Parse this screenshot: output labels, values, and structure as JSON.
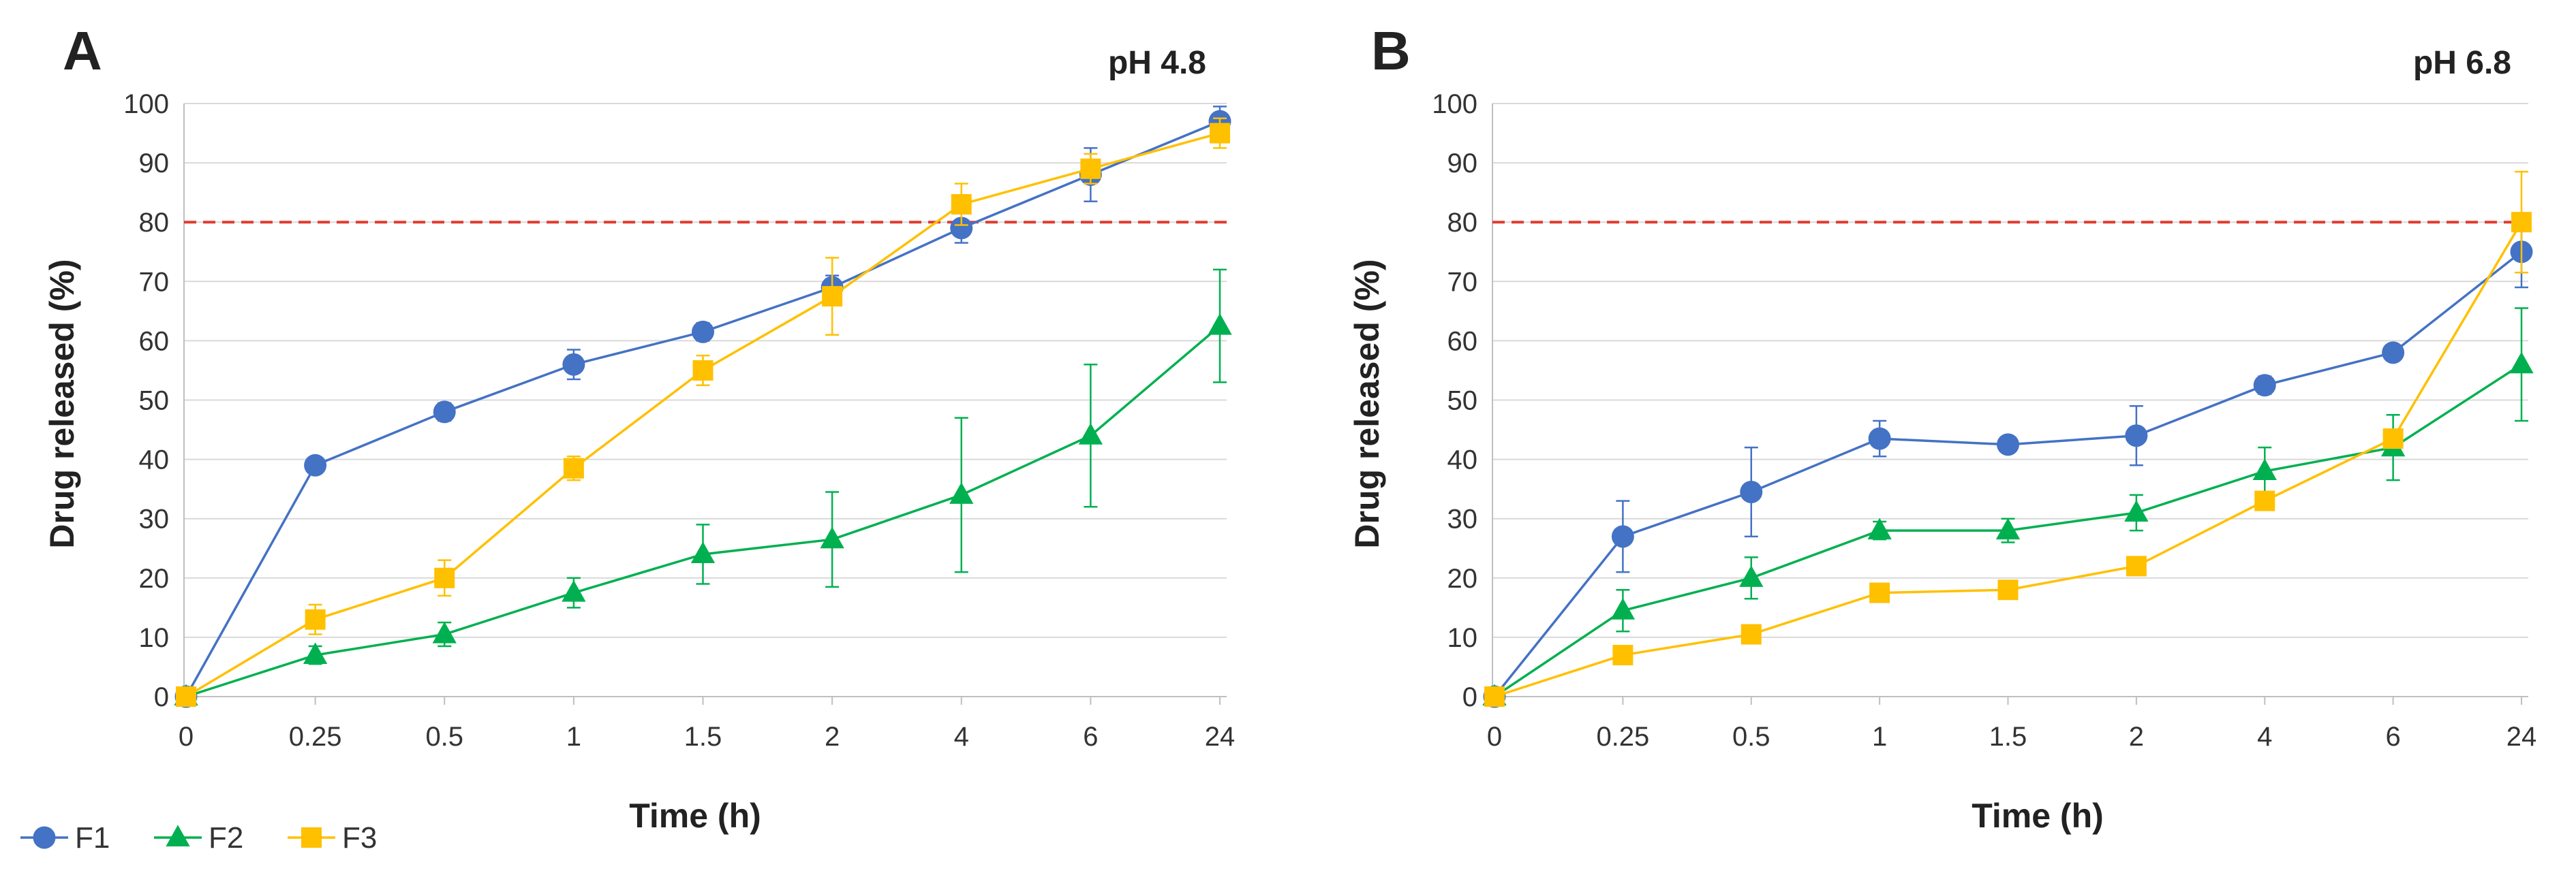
{
  "chart_data": [
    {
      "type": "line",
      "panel": "A",
      "title": "pH 4.8",
      "xlabel": "Time (h)",
      "ylabel": "Drug released (%)",
      "categories": [
        "0",
        "0.25",
        "0.5",
        "1",
        "1.5",
        "2",
        "4",
        "6",
        "24"
      ],
      "ylim": [
        0,
        100
      ],
      "yticks": [
        0,
        10,
        20,
        30,
        40,
        50,
        60,
        70,
        80,
        90,
        100
      ],
      "threshold": 80,
      "grid": true,
      "series": [
        {
          "name": "F1",
          "color": "#4472C4",
          "marker": "circle",
          "values": [
            0,
            39,
            48,
            56,
            61.5,
            69,
            79,
            88,
            97
          ],
          "errors": [
            0,
            0,
            1.5,
            2.5,
            1.5,
            2,
            2.5,
            4.5,
            2.5
          ]
        },
        {
          "name": "F2",
          "color": "#00B050",
          "marker": "triangle",
          "values": [
            0,
            7,
            10.5,
            17.5,
            24,
            26.5,
            34,
            44,
            62.5
          ],
          "errors": [
            0,
            1.5,
            2,
            2.5,
            5,
            8,
            13,
            12,
            9.5
          ]
        },
        {
          "name": "F3",
          "color": "#FFC000",
          "marker": "square",
          "values": [
            0,
            13,
            20,
            38.5,
            55,
            67.5,
            83,
            89,
            95
          ],
          "errors": [
            0,
            2.5,
            3,
            2,
            2.5,
            6.5,
            3.5,
            2.5,
            2.5
          ]
        }
      ]
    },
    {
      "type": "line",
      "panel": "B",
      "title": "pH 6.8",
      "xlabel": "Time (h)",
      "ylabel": "Drug released (%)",
      "categories": [
        "0",
        "0.25",
        "0.5",
        "1",
        "1.5",
        "2",
        "4",
        "6",
        "24"
      ],
      "ylim": [
        0,
        100
      ],
      "yticks": [
        0,
        10,
        20,
        30,
        40,
        50,
        60,
        70,
        80,
        90,
        100
      ],
      "threshold": 80,
      "grid": true,
      "series": [
        {
          "name": "F1",
          "color": "#4472C4",
          "marker": "circle",
          "values": [
            0,
            27,
            34.5,
            43.5,
            42.5,
            44,
            52.5,
            58,
            75
          ],
          "errors": [
            0,
            6,
            7.5,
            3,
            1,
            5,
            1.5,
            1,
            6
          ]
        },
        {
          "name": "F2",
          "color": "#00B050",
          "marker": "triangle",
          "values": [
            0,
            14.5,
            20,
            28,
            28,
            31,
            38,
            42,
            56
          ],
          "errors": [
            0,
            3.5,
            3.5,
            1.5,
            2,
            3,
            4,
            5.5,
            9.5
          ]
        },
        {
          "name": "F3",
          "color": "#FFC000",
          "marker": "square",
          "values": [
            0,
            7,
            10.5,
            17.5,
            18,
            22,
            33,
            43.5,
            80
          ],
          "errors": [
            0,
            0.5,
            0.5,
            1,
            1,
            1,
            1,
            1,
            8.5
          ]
        }
      ]
    }
  ],
  "legend": [
    {
      "label": "F1",
      "color": "#4472C4",
      "marker": "circle"
    },
    {
      "label": "F2",
      "color": "#00B050",
      "marker": "triangle"
    },
    {
      "label": "F3",
      "color": "#FFC000",
      "marker": "square"
    }
  ],
  "threshold_color": "#E03C31",
  "grid_color": "#D9D9D9",
  "axis_color": "#BFBFBF"
}
